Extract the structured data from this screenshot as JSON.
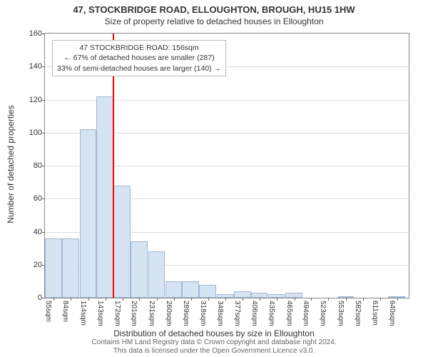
{
  "title_line1": "47, STOCKBRIDGE ROAD, ELLOUGHTON, BROUGH, HU15 1HW",
  "title_line2": "Size of property relative to detached houses in Elloughton",
  "y_axis_label": "Number of detached properties",
  "x_axis_label": "Distribution of detached houses by size in Elloughton",
  "annotation": {
    "l1": "47 STOCKBRIDGE ROAD: 156sqm",
    "l2": "← 67% of detached houses are smaller (287)",
    "l3": "33% of semi-detached houses are larger (140) →",
    "border_color": "#bbbbbb",
    "bg": "#ffffff",
    "fontsize": 10.5
  },
  "ref_line": {
    "x_value": 156,
    "color": "#ff0000",
    "width": 2
  },
  "chart": {
    "type": "histogram",
    "xlim": [
      40,
      660
    ],
    "ylim": [
      0,
      160
    ],
    "y_ticks": [
      0,
      20,
      40,
      60,
      80,
      100,
      120,
      140,
      160
    ],
    "x_tick_labels": [
      "55sqm",
      "84sqm",
      "114sqm",
      "143sqm",
      "172sqm",
      "201sqm",
      "231sqm",
      "260sqm",
      "289sqm",
      "318sqm",
      "348sqm",
      "377sqm",
      "406sqm",
      "435sqm",
      "465sqm",
      "494sqm",
      "523sqm",
      "553sqm",
      "582sqm",
      "611sqm",
      "640sqm"
    ],
    "x_tick_positions": [
      55,
      84,
      114,
      143,
      172,
      201,
      231,
      260,
      289,
      318,
      348,
      377,
      406,
      435,
      465,
      494,
      523,
      553,
      582,
      611,
      640
    ],
    "bar_bin_width": 30,
    "bar_centers": [
      55,
      84,
      114,
      143,
      172,
      201,
      231,
      260,
      289,
      318,
      348,
      377,
      406,
      435,
      465,
      494,
      523,
      553,
      582,
      611,
      640
    ],
    "bar_values": [
      36,
      36,
      102,
      122,
      68,
      34,
      28,
      10,
      10,
      8,
      2,
      4,
      3,
      2,
      3,
      0,
      0,
      1,
      0,
      0,
      1
    ],
    "bar_fill": "#d6e3f3",
    "bar_stroke": "#9fb8d8",
    "grid_color": "#dddddd",
    "axis_color": "#888888",
    "background": "#ffffff",
    "tick_fontsize": 11,
    "xtick_fontsize": 10,
    "label_fontsize": 12,
    "title_fontsize": 13
  },
  "footer_l1": "Contains HM Land Registry data © Crown copyright and database right 2024.",
  "footer_l2": "This data is licensed under the Open Government Licence v3.0."
}
